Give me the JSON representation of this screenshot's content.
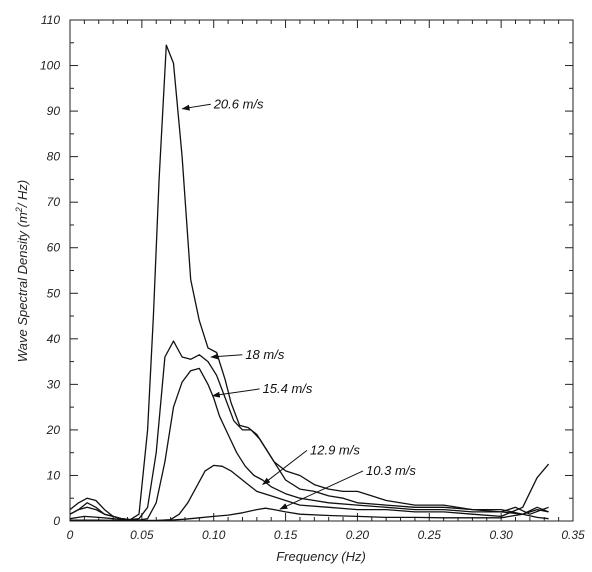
{
  "chart_data": {
    "type": "line",
    "title": "",
    "xlabel": "Frequency (Hz)",
    "ylabel_parts": [
      "Wave Spectral Density (m",
      "2",
      "/ Hz)"
    ],
    "xlim": [
      0,
      0.35
    ],
    "ylim": [
      0,
      110
    ],
    "xticks": [
      "0",
      "0.05",
      "0.10",
      "0.15",
      "0.20",
      "0.25",
      "0.30",
      "0.35"
    ],
    "yticks": [
      "0",
      "10",
      "20",
      "30",
      "40",
      "50",
      "60",
      "70",
      "80",
      "90",
      "100",
      "110"
    ],
    "grid": false,
    "legend": "none",
    "series": [
      {
        "name": "20.6 m/s",
        "x": [
          0,
          0.006,
          0.012,
          0.018,
          0.024,
          0.03,
          0.036,
          0.042,
          0.048,
          0.054,
          0.058,
          0.062,
          0.067,
          0.072,
          0.078,
          0.084,
          0.09,
          0.096,
          0.102,
          0.108,
          0.112,
          0.118,
          0.124,
          0.13,
          0.136,
          0.142,
          0.15,
          0.16,
          0.17,
          0.18,
          0.19,
          0.2,
          0.21,
          0.22,
          0.24,
          0.26,
          0.28,
          0.3,
          0.31,
          0.32,
          0.333
        ],
        "y": [
          1.5,
          2.5,
          4.0,
          3.0,
          1.5,
          1.0,
          0.5,
          0.3,
          1.5,
          20,
          45,
          75,
          104.5,
          100.5,
          80,
          53,
          44,
          38,
          37,
          31,
          26,
          21,
          20.5,
          19,
          16,
          13,
          11,
          10,
          8,
          7,
          6.5,
          6.5,
          5.5,
          4.5,
          3.5,
          3.5,
          2.5,
          2.0,
          3.0,
          1.5,
          3.0
        ]
      },
      {
        "name": "18 m/s",
        "x": [
          0,
          0.006,
          0.012,
          0.018,
          0.024,
          0.03,
          0.036,
          0.042,
          0.048,
          0.054,
          0.06,
          0.066,
          0.072,
          0.078,
          0.084,
          0.09,
          0.096,
          0.102,
          0.108,
          0.114,
          0.12,
          0.126,
          0.132,
          0.14,
          0.15,
          0.16,
          0.17,
          0.18,
          0.19,
          0.2,
          0.22,
          0.24,
          0.26,
          0.28,
          0.3,
          0.315,
          0.325,
          0.333
        ],
        "y": [
          2.5,
          4.0,
          5.0,
          4.5,
          2.5,
          1.0,
          0.5,
          0.3,
          0.5,
          3.0,
          15,
          36,
          39.5,
          36,
          35.5,
          36.5,
          35,
          32,
          27,
          22,
          20,
          20,
          18,
          14,
          9,
          7,
          6.5,
          5.5,
          5.0,
          4.0,
          3.5,
          3.0,
          3.0,
          2.5,
          2.5,
          1.5,
          3.0,
          2.0
        ]
      },
      {
        "name": "15.4 m/s",
        "x": [
          0,
          0.006,
          0.012,
          0.018,
          0.024,
          0.03,
          0.036,
          0.042,
          0.048,
          0.054,
          0.06,
          0.066,
          0.072,
          0.078,
          0.084,
          0.09,
          0.096,
          0.1,
          0.104,
          0.11,
          0.116,
          0.122,
          0.128,
          0.134,
          0.14,
          0.15,
          0.16,
          0.17,
          0.18,
          0.2,
          0.22,
          0.24,
          0.26,
          0.28,
          0.3,
          0.315,
          0.325,
          0.333
        ],
        "y": [
          1.5,
          2.5,
          3.0,
          2.5,
          1.5,
          1.0,
          0.5,
          0.3,
          0.2,
          0.5,
          4.0,
          13,
          25,
          30.5,
          33,
          33.5,
          30,
          27,
          23,
          19,
          15,
          12,
          10,
          9,
          7.5,
          6,
          5,
          4.5,
          4.0,
          3.5,
          3.0,
          2.5,
          2.5,
          2.0,
          2.0,
          1.5,
          2.5,
          2.0
        ]
      },
      {
        "name": "12.9 m/s",
        "x": [
          0,
          0.01,
          0.02,
          0.03,
          0.04,
          0.05,
          0.06,
          0.07,
          0.076,
          0.082,
          0.088,
          0.094,
          0.1,
          0.106,
          0.112,
          0.118,
          0.124,
          0.13,
          0.14,
          0.15,
          0.16,
          0.18,
          0.2,
          0.22,
          0.24,
          0.26,
          0.28,
          0.3,
          0.315,
          0.325,
          0.333
        ],
        "y": [
          0.5,
          1.0,
          0.8,
          0.5,
          0.2,
          0.1,
          0.1,
          0.3,
          1.5,
          4.0,
          7.5,
          11,
          12.2,
          12.0,
          11,
          9.5,
          8.0,
          6.5,
          5.5,
          4.5,
          3.5,
          3.0,
          2.5,
          2.5,
          2.0,
          2.0,
          1.5,
          1.0,
          3.0,
          9.5,
          12.5
        ]
      },
      {
        "name": "10.3 m/s",
        "x": [
          0,
          0.02,
          0.04,
          0.06,
          0.07,
          0.08,
          0.09,
          0.1,
          0.11,
          0.12,
          0.13,
          0.136,
          0.142,
          0.15,
          0.16,
          0.18,
          0.2,
          0.22,
          0.24,
          0.26,
          0.28,
          0.3,
          0.315,
          0.325,
          0.333
        ],
        "y": [
          0.2,
          0.2,
          0.1,
          0.1,
          0.2,
          0.4,
          0.7,
          1.0,
          1.3,
          1.8,
          2.5,
          2.8,
          2.5,
          2.0,
          1.5,
          1.2,
          1.0,
          0.8,
          0.8,
          0.7,
          0.7,
          0.7,
          1.5,
          0.8,
          0.5
        ]
      }
    ],
    "annotations": [
      {
        "text": "20.6 m/s",
        "x": 0.1,
        "y": 91.5,
        "arrow_to_x": 0.078,
        "arrow_to_y": 90.5
      },
      {
        "text": "18 m/s",
        "x": 0.122,
        "y": 36.5,
        "arrow_to_x": 0.098,
        "arrow_to_y": 36.0
      },
      {
        "text": "15.4 m/s",
        "x": 0.134,
        "y": 29.0,
        "arrow_to_x": 0.099,
        "arrow_to_y": 27.5
      },
      {
        "text": "12.9 m/s",
        "x": 0.167,
        "y": 15.5,
        "arrow_to_x": 0.134,
        "arrow_to_y": 8.0
      },
      {
        "text": "10.3 m/s",
        "x": 0.206,
        "y": 11.0,
        "arrow_to_x": 0.146,
        "arrow_to_y": 2.6
      }
    ]
  }
}
